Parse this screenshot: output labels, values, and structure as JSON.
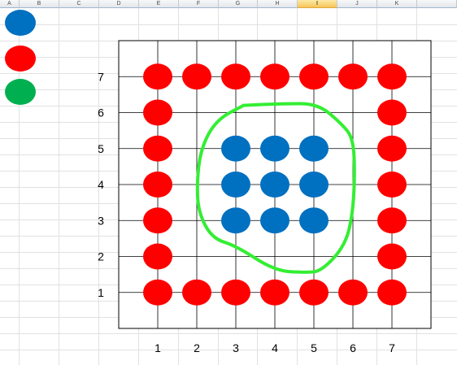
{
  "spreadsheet": {
    "columns": [
      "A",
      "B",
      "C",
      "D",
      "E",
      "F",
      "G",
      "H",
      "I",
      "J",
      "K"
    ],
    "selected_column": "I"
  },
  "legend": [
    {
      "color": "#0070c0",
      "icon": "blue-circle-icon"
    },
    {
      "color": "#ff0000",
      "icon": "red-circle-icon"
    },
    {
      "color": "#00b050",
      "icon": "green-circle-icon"
    }
  ],
  "chart_data": {
    "type": "scatter",
    "x_ticks": [
      "1",
      "2",
      "3",
      "4",
      "5",
      "6",
      "7"
    ],
    "y_ticks": [
      "1",
      "2",
      "3",
      "4",
      "5",
      "6",
      "7"
    ],
    "xlim": [
      0,
      8
    ],
    "ylim": [
      0,
      8
    ],
    "grid": true,
    "series": [
      {
        "color": "#ff0000",
        "points": [
          [
            1,
            1
          ],
          [
            2,
            1
          ],
          [
            3,
            1
          ],
          [
            4,
            1
          ],
          [
            5,
            1
          ],
          [
            6,
            1
          ],
          [
            7,
            1
          ],
          [
            1,
            2
          ],
          [
            7,
            2
          ],
          [
            1,
            3
          ],
          [
            7,
            3
          ],
          [
            1,
            4
          ],
          [
            7,
            4
          ],
          [
            1,
            5
          ],
          [
            7,
            5
          ],
          [
            1,
            6
          ],
          [
            7,
            6
          ],
          [
            1,
            7
          ],
          [
            2,
            7
          ],
          [
            3,
            7
          ],
          [
            4,
            7
          ],
          [
            5,
            7
          ],
          [
            6,
            7
          ],
          [
            7,
            7
          ]
        ]
      },
      {
        "color": "#0070c0",
        "points": [
          [
            3,
            3
          ],
          [
            4,
            3
          ],
          [
            5,
            3
          ],
          [
            3,
            4
          ],
          [
            4,
            4
          ],
          [
            5,
            4
          ],
          [
            3,
            5
          ],
          [
            4,
            5
          ],
          [
            5,
            5
          ]
        ]
      }
    ],
    "annotation": {
      "shape": "freehand-loop",
      "color": "#33ee33",
      "path": [
        [
          3.2,
          6.2
        ],
        [
          4.2,
          6.25
        ],
        [
          5.1,
          6.25
        ],
        [
          5.7,
          5.7
        ],
        [
          6.0,
          5.3
        ],
        [
          6.05,
          4.4
        ],
        [
          6.0,
          3.2
        ],
        [
          5.8,
          2.3
        ],
        [
          5.2,
          1.6
        ],
        [
          4.8,
          1.55
        ],
        [
          4.0,
          1.6
        ],
        [
          3.0,
          2.3
        ],
        [
          2.4,
          2.5
        ],
        [
          2.05,
          3.2
        ],
        [
          2.0,
          4.0
        ],
        [
          2.1,
          5.0
        ],
        [
          2.5,
          5.8
        ],
        [
          3.2,
          6.2
        ]
      ]
    }
  }
}
